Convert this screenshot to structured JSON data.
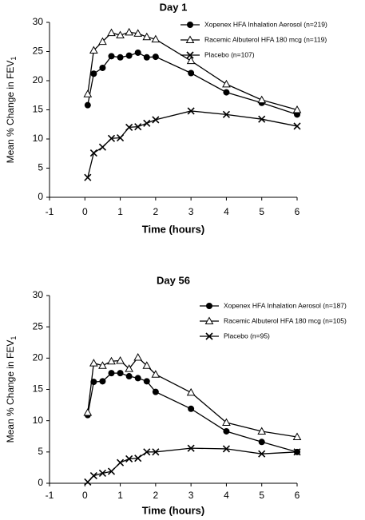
{
  "chart_data": [
    {
      "type": "line",
      "title": "Day 1",
      "xlabel": "Time (hours)",
      "ylabel": "Mean % Change in FEV",
      "ylabel_sub": "1",
      "x": [
        0.08,
        0.25,
        0.5,
        0.75,
        1,
        1.25,
        1.5,
        1.75,
        2,
        3,
        4,
        5,
        6
      ],
      "xlim": [
        -1,
        6
      ],
      "xticks": [
        -1,
        0,
        1,
        2,
        3,
        4,
        5,
        6
      ],
      "ylim": [
        0,
        30
      ],
      "yticks": [
        0,
        5,
        10,
        15,
        20,
        25,
        30
      ],
      "legend": "upper right",
      "series": [
        {
          "name": "Xopenex HFA Inhalation Aerosol (n=219)",
          "color": "#000000",
          "marker": "circle",
          "values": [
            15.8,
            21.2,
            22.2,
            24.2,
            24.0,
            24.3,
            24.8,
            24.0,
            24.1,
            21.3,
            18.0,
            16.2,
            14.2
          ]
        },
        {
          "name": "Racemic Albuterol HFA 180 mcg (n=119)",
          "color": "#000000",
          "marker": "triangle",
          "values": [
            17.7,
            25.2,
            26.7,
            28.2,
            27.8,
            28.3,
            28.1,
            27.5,
            27.1,
            23.4,
            19.4,
            16.7,
            15.0
          ]
        },
        {
          "name": "Placebo (n=107)",
          "color": "#000000",
          "marker": "x",
          "values": [
            3.4,
            7.6,
            8.6,
            10.1,
            10.2,
            12.0,
            12.1,
            12.7,
            13.3,
            14.8,
            14.2,
            13.4,
            12.2
          ]
        }
      ]
    },
    {
      "type": "line",
      "title": "Day 56",
      "xlabel": "Time (hours)",
      "ylabel": "Mean % Change in FEV",
      "ylabel_sub": "1",
      "x": [
        0.08,
        0.25,
        0.5,
        0.75,
        1,
        1.25,
        1.5,
        1.75,
        2,
        3,
        4,
        5,
        6
      ],
      "xlim": [
        -1,
        6
      ],
      "xticks": [
        -1,
        0,
        1,
        2,
        3,
        4,
        5,
        6
      ],
      "ylim": [
        0,
        30
      ],
      "yticks": [
        0,
        5,
        10,
        15,
        20,
        25,
        30
      ],
      "legend": "upper right",
      "series": [
        {
          "name": "Xopenex HFA Inhalation Aerosol (n=187)",
          "color": "#000000",
          "marker": "circle",
          "values": [
            10.9,
            16.2,
            16.3,
            17.6,
            17.6,
            17.1,
            16.8,
            16.3,
            14.6,
            11.9,
            8.3,
            6.6,
            5.0
          ]
        },
        {
          "name": "Racemic Albuterol HFA 180 mcg (n=105)",
          "color": "#000000",
          "marker": "triangle",
          "values": [
            11.3,
            19.2,
            18.8,
            19.5,
            19.6,
            18.3,
            20.1,
            18.8,
            17.4,
            14.5,
            9.7,
            8.3,
            7.4
          ]
        },
        {
          "name": "Placebo (n=95)",
          "color": "#000000",
          "marker": "x",
          "values": [
            0.2,
            1.2,
            1.6,
            1.9,
            3.3,
            3.9,
            4.0,
            5.0,
            5.0,
            5.6,
            5.5,
            4.7,
            5.0
          ]
        }
      ]
    }
  ]
}
